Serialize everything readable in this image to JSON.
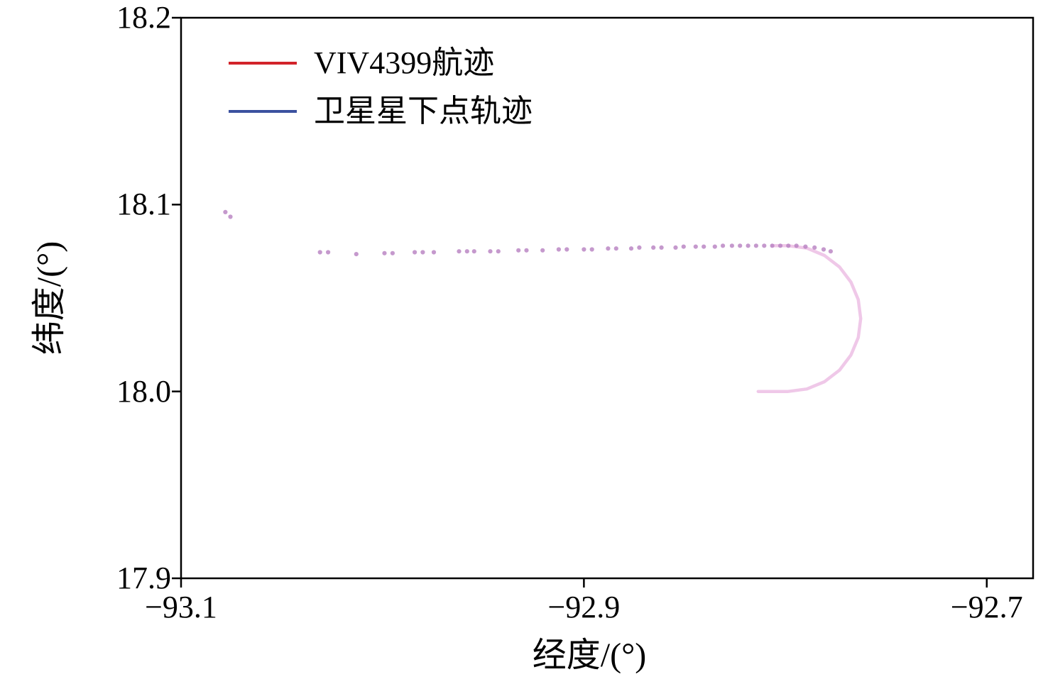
{
  "legend": {
    "items": [
      {
        "label": "VIV4399航迹",
        "color": "#d2232a"
      },
      {
        "label": "卫星星下点轨迹",
        "color": "#3b519f"
      }
    ]
  },
  "chart_data": {
    "type": "scatter",
    "title": "",
    "xlabel": "经度/(°)",
    "ylabel": "纬度/(°)",
    "xlim": [
      -93.1,
      -92.677
    ],
    "ylim": [
      17.9,
      18.2
    ],
    "x_tick_values": [
      -93.1,
      -92.9,
      -92.7
    ],
    "x_tick_labels": [
      "−93.1",
      "−92.9",
      "−92.7"
    ],
    "y_tick_values": [
      17.9,
      18.0,
      18.1,
      18.2
    ],
    "y_tick_labels": [
      "17.9",
      "18.0",
      "18.1",
      "18.2"
    ],
    "grid": false,
    "legend_position": "upper left",
    "series": [
      {
        "name": "VIV4399航迹",
        "color": "#d2232a",
        "style": "line"
      },
      {
        "name": "卫星星下点轨迹",
        "color": "#3b519f",
        "style": "line"
      }
    ],
    "track": {
      "dot_color": "#b77fc0",
      "curve_color": "#eec5e7",
      "dots": [
        [
          -93.078,
          18.096
        ],
        [
          -93.0755,
          18.0935
        ],
        [
          -93.031,
          18.0745
        ],
        [
          -93.027,
          18.0745
        ],
        [
          -93.013,
          18.0735
        ],
        [
          -92.999,
          18.074
        ],
        [
          -92.995,
          18.074
        ],
        [
          -92.984,
          18.0745
        ],
        [
          -92.98,
          18.0745
        ],
        [
          -92.9745,
          18.0745
        ],
        [
          -92.962,
          18.075
        ],
        [
          -92.958,
          18.075
        ],
        [
          -92.9545,
          18.075
        ],
        [
          -92.9465,
          18.075
        ],
        [
          -92.9425,
          18.075
        ],
        [
          -92.9325,
          18.0755
        ],
        [
          -92.9285,
          18.0755
        ],
        [
          -92.9205,
          18.0755
        ],
        [
          -92.9125,
          18.076
        ],
        [
          -92.9085,
          18.076
        ],
        [
          -92.9,
          18.076
        ],
        [
          -92.896,
          18.076
        ],
        [
          -92.888,
          18.0765
        ],
        [
          -92.884,
          18.0765
        ],
        [
          -92.8765,
          18.0765
        ],
        [
          -92.8725,
          18.077
        ],
        [
          -92.8655,
          18.077
        ],
        [
          -92.8615,
          18.077
        ],
        [
          -92.8545,
          18.077
        ],
        [
          -92.8505,
          18.0775
        ],
        [
          -92.8445,
          18.0775
        ],
        [
          -92.8405,
          18.0775
        ],
        [
          -92.835,
          18.0775
        ],
        [
          -92.831,
          18.078
        ],
        [
          -92.8265,
          18.078
        ],
        [
          -92.8225,
          18.078
        ],
        [
          -92.8185,
          18.078
        ],
        [
          -92.8145,
          18.078
        ],
        [
          -92.8105,
          18.078
        ],
        [
          -92.8065,
          18.078
        ],
        [
          -92.8025,
          18.078
        ],
        [
          -92.7985,
          18.078
        ],
        [
          -92.7945,
          18.078
        ],
        [
          -92.79,
          18.0775
        ],
        [
          -92.7855,
          18.077
        ],
        [
          -92.781,
          18.076
        ],
        [
          -92.7775,
          18.075
        ]
      ],
      "curve": [
        [
          -92.8065,
          18.078
        ],
        [
          -92.802,
          18.078
        ],
        [
          -92.7986,
          18.078
        ],
        [
          -92.7893,
          18.0767
        ],
        [
          -92.7806,
          18.0728
        ],
        [
          -92.7731,
          18.0666
        ],
        [
          -92.7674,
          18.0585
        ],
        [
          -92.7638,
          18.0491
        ],
        [
          -92.7626,
          18.039
        ],
        [
          -92.7638,
          18.0289
        ],
        [
          -92.7674,
          18.0195
        ],
        [
          -92.7731,
          18.0114
        ],
        [
          -92.7806,
          18.0052
        ],
        [
          -92.7893,
          18.0013
        ],
        [
          -92.7986,
          18.0
        ],
        [
          -92.804,
          18.0
        ],
        [
          -92.8095,
          18.0
        ],
        [
          -92.8135,
          18.0
        ]
      ]
    }
  }
}
